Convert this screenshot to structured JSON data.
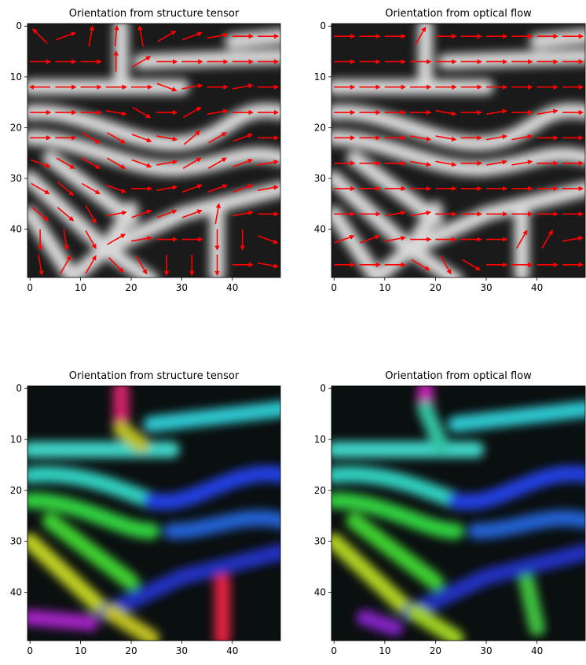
{
  "chart_data": [
    {
      "type": "quiver",
      "title": "Orientation from structure tensor",
      "xlim": [
        -0.5,
        49.5
      ],
      "ylim": [
        49.5,
        -0.5
      ],
      "xticks": [
        0,
        10,
        20,
        30,
        40
      ],
      "yticks": [
        0,
        10,
        20,
        30,
        40
      ],
      "arrows": {
        "color": "#ff0000",
        "x": [
          2,
          7,
          12,
          17,
          22,
          27,
          32,
          37,
          42,
          47
        ],
        "y": [
          2,
          7,
          12,
          17,
          22,
          27,
          32,
          37,
          42,
          47
        ],
        "angle": [
          [
            135,
            20,
            80,
            85,
            100,
            30,
            20,
            10,
            0,
            0
          ],
          [
            0,
            0,
            0,
            90,
            30,
            0,
            0,
            0,
            0,
            0
          ],
          [
            180,
            0,
            0,
            0,
            0,
            -20,
            10,
            0,
            10,
            0
          ],
          [
            0,
            0,
            0,
            -10,
            -30,
            0,
            30,
            10,
            0,
            0
          ],
          [
            0,
            0,
            -30,
            -30,
            -20,
            -10,
            40,
            30,
            20,
            0
          ],
          [
            -20,
            -30,
            -30,
            -30,
            -20,
            10,
            30,
            30,
            20,
            10
          ],
          [
            -30,
            -40,
            -30,
            -20,
            0,
            10,
            20,
            20,
            20,
            10
          ],
          [
            -40,
            -40,
            -60,
            10,
            20,
            20,
            20,
            80,
            10,
            0
          ],
          [
            -90,
            -80,
            -60,
            30,
            10,
            0,
            0,
            -90,
            -90,
            -20
          ],
          [
            -80,
            60,
            60,
            -45,
            -60,
            -90,
            -90,
            -90,
            0,
            -10
          ]
        ]
      }
    },
    {
      "type": "quiver",
      "title": "Orientation from optical flow",
      "xlim": [
        -0.5,
        49.5
      ],
      "ylim": [
        49.5,
        -0.5
      ],
      "xticks": [
        0,
        10,
        20,
        30,
        40
      ],
      "yticks": [
        0,
        10,
        20,
        30,
        40
      ],
      "arrows": {
        "color": "#ff0000",
        "x": [
          2,
          7,
          12,
          17,
          22,
          27,
          32,
          37,
          42,
          47
        ],
        "y": [
          2,
          7,
          12,
          17,
          22,
          27,
          32,
          37,
          42,
          47
        ],
        "angle": [
          [
            0,
            0,
            0,
            60,
            0,
            0,
            0,
            0,
            0,
            0
          ],
          [
            0,
            0,
            0,
            0,
            0,
            0,
            0,
            0,
            0,
            0
          ],
          [
            0,
            0,
            0,
            0,
            0,
            0,
            0,
            0,
            0,
            0
          ],
          [
            0,
            0,
            0,
            0,
            -10,
            0,
            10,
            0,
            10,
            0
          ],
          [
            0,
            0,
            0,
            -10,
            -10,
            0,
            10,
            10,
            0,
            0
          ],
          [
            0,
            0,
            0,
            -10,
            -10,
            0,
            10,
            10,
            0,
            0
          ],
          [
            0,
            0,
            0,
            0,
            0,
            0,
            0,
            0,
            0,
            0
          ],
          [
            0,
            0,
            10,
            10,
            0,
            0,
            0,
            0,
            0,
            0
          ],
          [
            20,
            20,
            10,
            0,
            0,
            0,
            0,
            60,
            60,
            10
          ],
          [
            0,
            0,
            0,
            -30,
            -60,
            -30,
            0,
            0,
            0,
            0
          ]
        ]
      }
    },
    {
      "type": "image",
      "title": "Orientation from structure tensor",
      "xlim": [
        -0.5,
        49.5
      ],
      "ylim": [
        49.5,
        -0.5
      ],
      "xticks": [
        0,
        10,
        20,
        30,
        40
      ],
      "yticks": [
        0,
        10,
        20,
        30,
        40
      ]
    },
    {
      "type": "image",
      "title": "Orientation from optical flow",
      "xlim": [
        -0.5,
        49.5
      ],
      "ylim": [
        49.5,
        -0.5
      ],
      "xticks": [
        0,
        10,
        20,
        30,
        40
      ],
      "yticks": [
        0,
        10,
        20,
        30,
        40
      ]
    }
  ]
}
